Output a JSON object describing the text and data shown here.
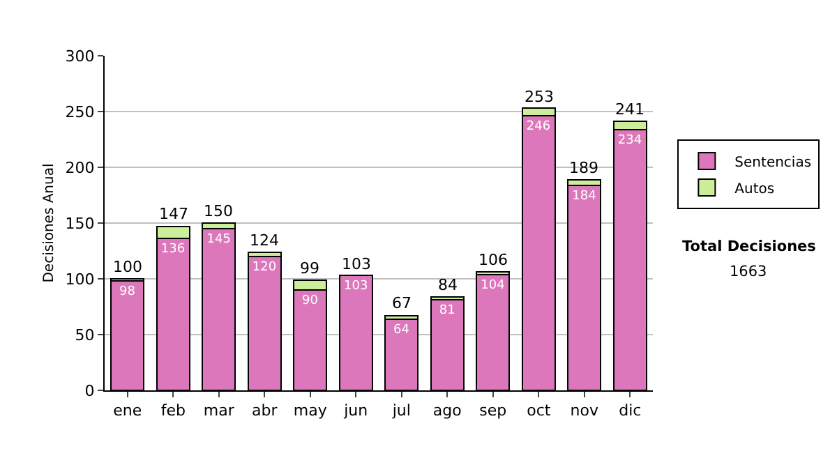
{
  "chart_data": {
    "type": "bar",
    "stacked": true,
    "ylabel": "Decisiones Anual",
    "categories": [
      "ene",
      "feb",
      "mar",
      "abr",
      "may",
      "jun",
      "jul",
      "ago",
      "sep",
      "oct",
      "nov",
      "dic"
    ],
    "series": [
      {
        "name": "Sentencias",
        "color": "#dd77bb",
        "values": [
          98,
          136,
          145,
          120,
          90,
          103,
          64,
          81,
          104,
          246,
          184,
          234
        ],
        "value_labels": [
          "98",
          "136",
          "145",
          "120",
          "90",
          "103",
          "64",
          "81",
          "104",
          "246",
          "184",
          "234"
        ]
      },
      {
        "name": "Autos",
        "color": "#ccee99",
        "values": [
          2,
          11,
          5,
          4,
          9,
          0,
          3,
          3,
          2,
          7,
          5,
          7
        ]
      }
    ],
    "totals": [
      "100",
      "147",
      "150",
      "124",
      "99",
      "103",
      "67",
      "84",
      "106",
      "253",
      "189",
      "241"
    ],
    "ylim": [
      0,
      300
    ],
    "yticks": [
      0,
      50,
      100,
      150,
      200,
      250,
      300
    ],
    "grid": "y",
    "legend": "right",
    "annotations": [
      "Total Decisiones",
      "1663"
    ]
  }
}
